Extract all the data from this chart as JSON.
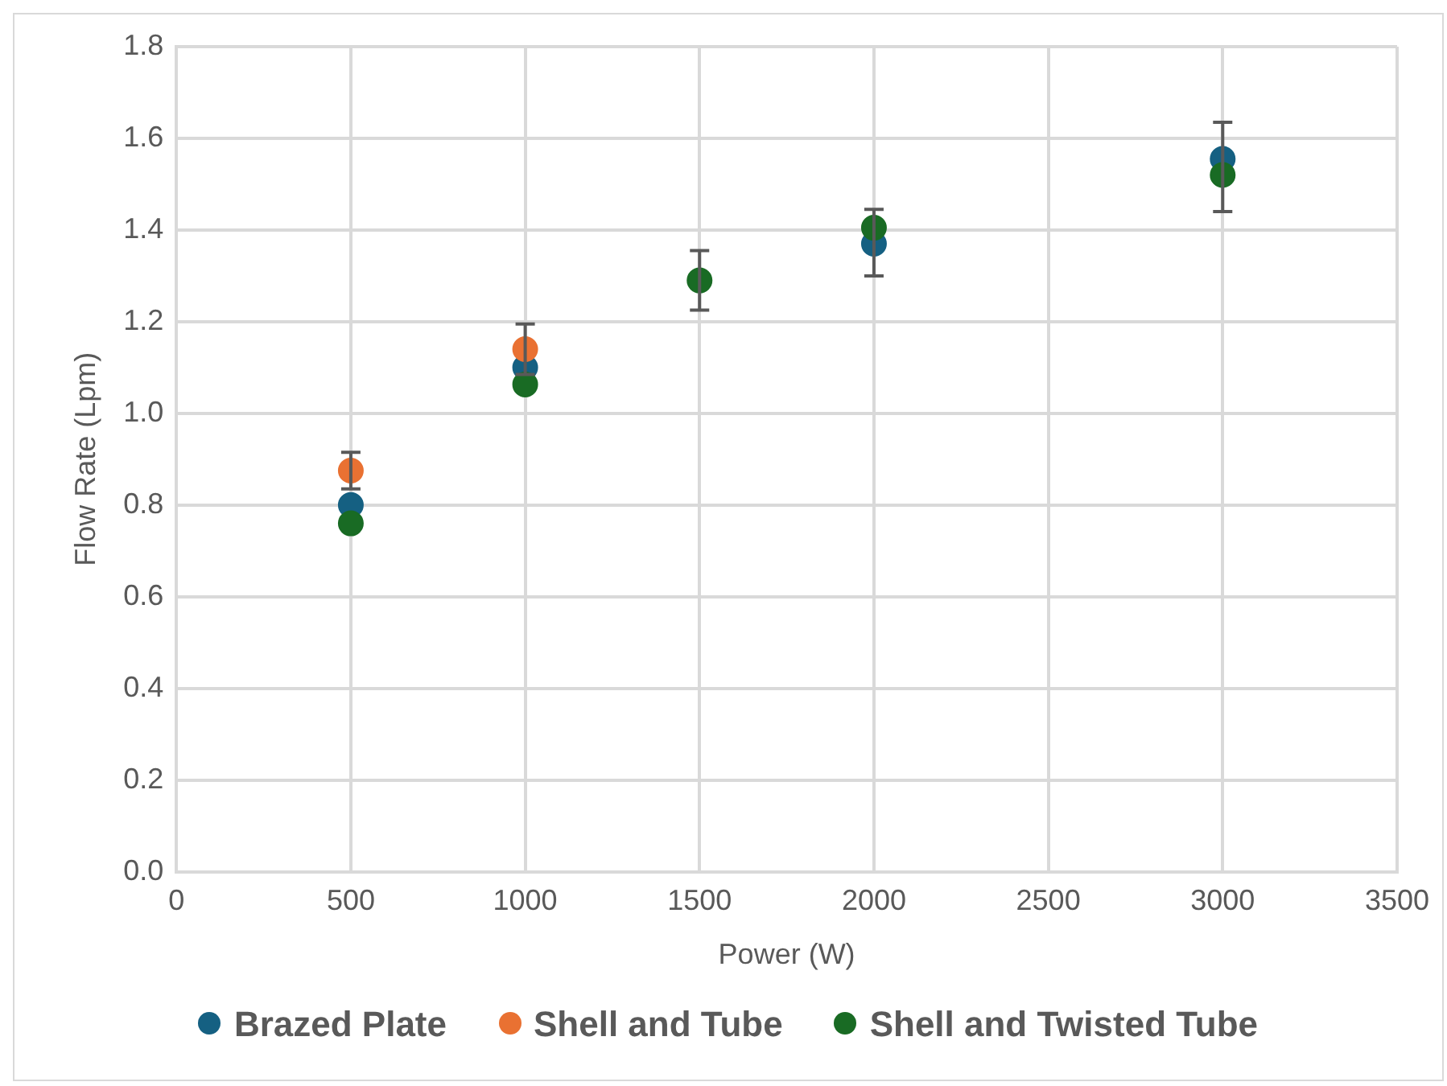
{
  "chart_data": {
    "type": "scatter",
    "xlabel": "Power (W)",
    "ylabel": "Flow Rate (Lpm)",
    "x": [
      500,
      1000,
      1500,
      2000,
      3000
    ],
    "series": [
      {
        "name": "Brazed Plate",
        "color": "#156082",
        "values": [
          0.8,
          1.1,
          null,
          1.37,
          1.555
        ]
      },
      {
        "name": "Shell and Tube",
        "color": "#e97132",
        "values": [
          0.875,
          1.14,
          null,
          null,
          null
        ],
        "errors": [
          0.04,
          0.055,
          null,
          null,
          null
        ]
      },
      {
        "name": "Shell and Twisted Tube",
        "color": "#196b24",
        "values": [
          0.76,
          1.063,
          1.29,
          1.405,
          1.52
        ],
        "errors": [
          null,
          null,
          [
            1.225,
            1.355
          ],
          [
            1.3,
            1.445
          ],
          [
            1.44,
            1.635
          ]
        ]
      }
    ],
    "xlim": [
      0,
      3500
    ],
    "xticks": [
      0,
      500,
      1000,
      1500,
      2000,
      2500,
      3000,
      3500
    ],
    "ylim": [
      0,
      1.8
    ],
    "yticks": [
      {
        "value": 0,
        "label": "0.0"
      },
      0.2,
      0.4,
      0.6,
      0.8,
      {
        "value": 1,
        "label": "1.0"
      },
      1.2,
      1.4,
      1.6,
      1.8
    ],
    "grid": true,
    "legend": "bottom",
    "marker": "circle"
  }
}
